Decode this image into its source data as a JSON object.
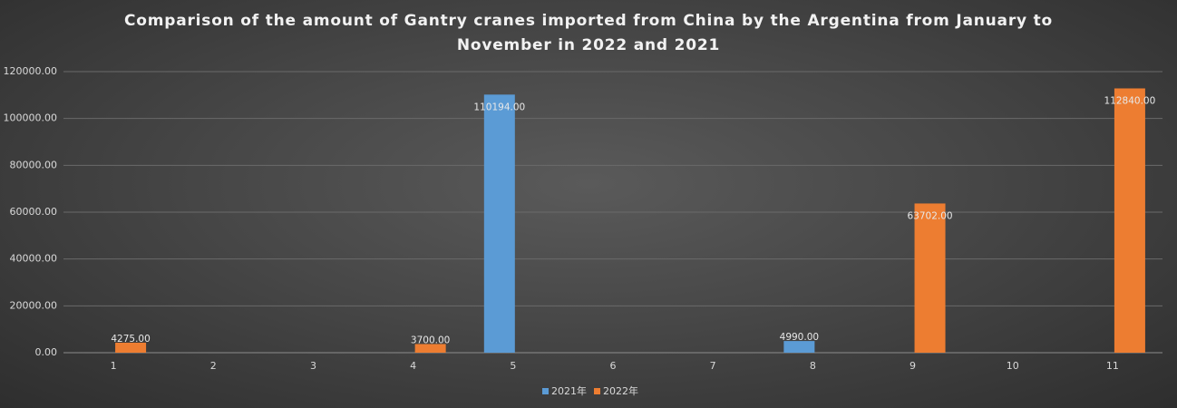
{
  "chart_data": {
    "type": "bar",
    "title": "Comparison of the amount of Gantry cranes imported from China by the Argentina from January to November in 2022 and 2021",
    "categories": [
      "1",
      "2",
      "3",
      "4",
      "5",
      "6",
      "7",
      "8",
      "9",
      "10",
      "11"
    ],
    "series": [
      {
        "name": "2021年",
        "color": "#5b9bd5",
        "values": [
          null,
          null,
          null,
          null,
          110194,
          null,
          null,
          4990,
          null,
          null,
          null
        ],
        "value_labels": [
          null,
          null,
          null,
          null,
          "110194.00",
          null,
          null,
          "4990.00",
          null,
          null,
          null
        ]
      },
      {
        "name": "2022年",
        "color": "#ed7d31",
        "values": [
          4275,
          null,
          null,
          3700,
          null,
          null,
          null,
          null,
          63702,
          null,
          112840
        ],
        "value_labels": [
          "4275.00",
          null,
          null,
          "3700.00",
          null,
          null,
          null,
          null,
          "63702.00",
          null,
          "112840.00"
        ]
      }
    ],
    "ylim": [
      0,
      120000
    ],
    "yticks": [
      {
        "value": 0,
        "label": "0.00"
      },
      {
        "value": 20000,
        "label": "20000.00"
      },
      {
        "value": 40000,
        "label": "40000.00"
      },
      {
        "value": 60000,
        "label": "60000.00"
      },
      {
        "value": 80000,
        "label": "80000.00"
      },
      {
        "value": 100000,
        "label": "100000.00"
      },
      {
        "value": 120000,
        "label": "120000.00"
      }
    ],
    "grid": true
  }
}
